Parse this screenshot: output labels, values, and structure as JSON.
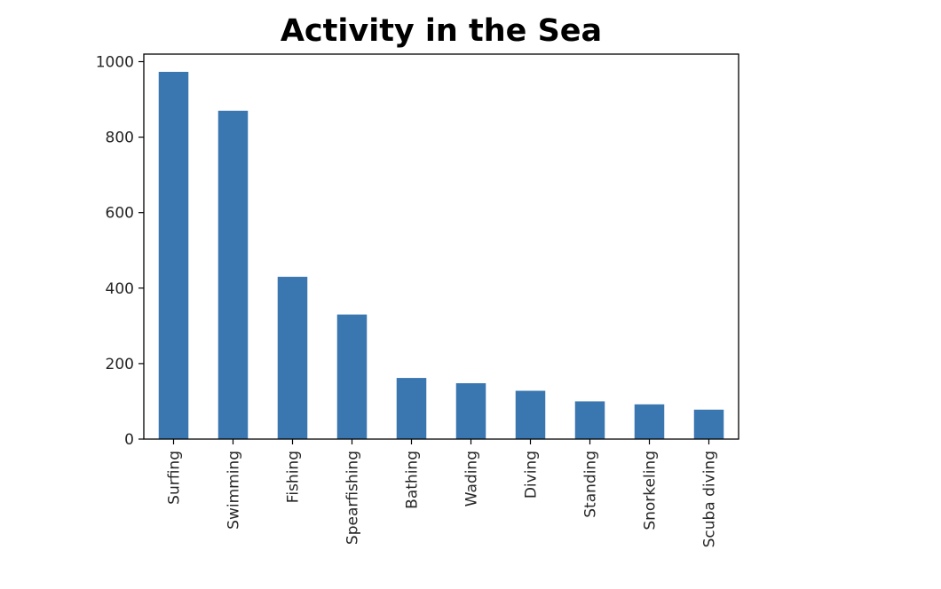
{
  "chart_data": {
    "type": "bar",
    "title": "Activity in the Sea",
    "xlabel": "",
    "ylabel": "",
    "categories": [
      "Surfing",
      "Swimming",
      "Fishing",
      "Spearfishing",
      "Bathing",
      "Wading",
      "Diving",
      "Standing",
      "Snorkeling",
      "Scuba diving"
    ],
    "values": [
      973,
      870,
      430,
      330,
      162,
      148,
      128,
      100,
      92,
      78
    ],
    "ylim": [
      0,
      1020
    ],
    "yticks": [
      0,
      200,
      400,
      600,
      800,
      1000
    ],
    "grid": false,
    "bar_color": "#3a76b0"
  }
}
